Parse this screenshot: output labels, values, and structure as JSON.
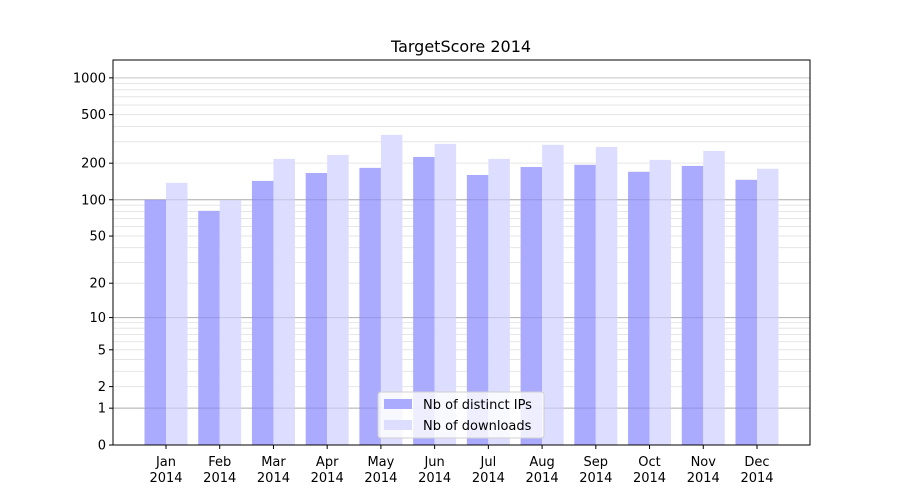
{
  "chart_data": {
    "type": "bar",
    "title": "TargetScore 2014",
    "xlabel": "",
    "ylabel": "",
    "yscale": "log(1+y)",
    "ylim": [
      0,
      1400
    ],
    "yticks": [
      0,
      1,
      2,
      5,
      10,
      20,
      50,
      100,
      200,
      500,
      1000
    ],
    "ytick_labels": [
      "0",
      "1",
      "2",
      "5",
      "10",
      "20",
      "50",
      "100",
      "200",
      "500",
      "1000"
    ],
    "grid": "major and minor horizontal",
    "legend_position": "lower center",
    "categories": [
      [
        "Jan",
        "2014"
      ],
      [
        "Feb",
        "2014"
      ],
      [
        "Mar",
        "2014"
      ],
      [
        "Apr",
        "2014"
      ],
      [
        "May",
        "2014"
      ],
      [
        "Jun",
        "2014"
      ],
      [
        "Jul",
        "2014"
      ],
      [
        "Aug",
        "2014"
      ],
      [
        "Sep",
        "2014"
      ],
      [
        "Oct",
        "2014"
      ],
      [
        "Nov",
        "2014"
      ],
      [
        "Dec",
        "2014"
      ]
    ],
    "series": [
      {
        "name": "Nb of distinct IPs",
        "color": "#aaaaff",
        "values": [
          100,
          81,
          143,
          166,
          183,
          225,
          160,
          186,
          194,
          170,
          190,
          146
        ]
      },
      {
        "name": "Nb of downloads",
        "color": "#ddddff",
        "values": [
          138,
          99,
          217,
          234,
          342,
          288,
          217,
          283,
          272,
          213,
          252,
          180
        ]
      }
    ]
  }
}
